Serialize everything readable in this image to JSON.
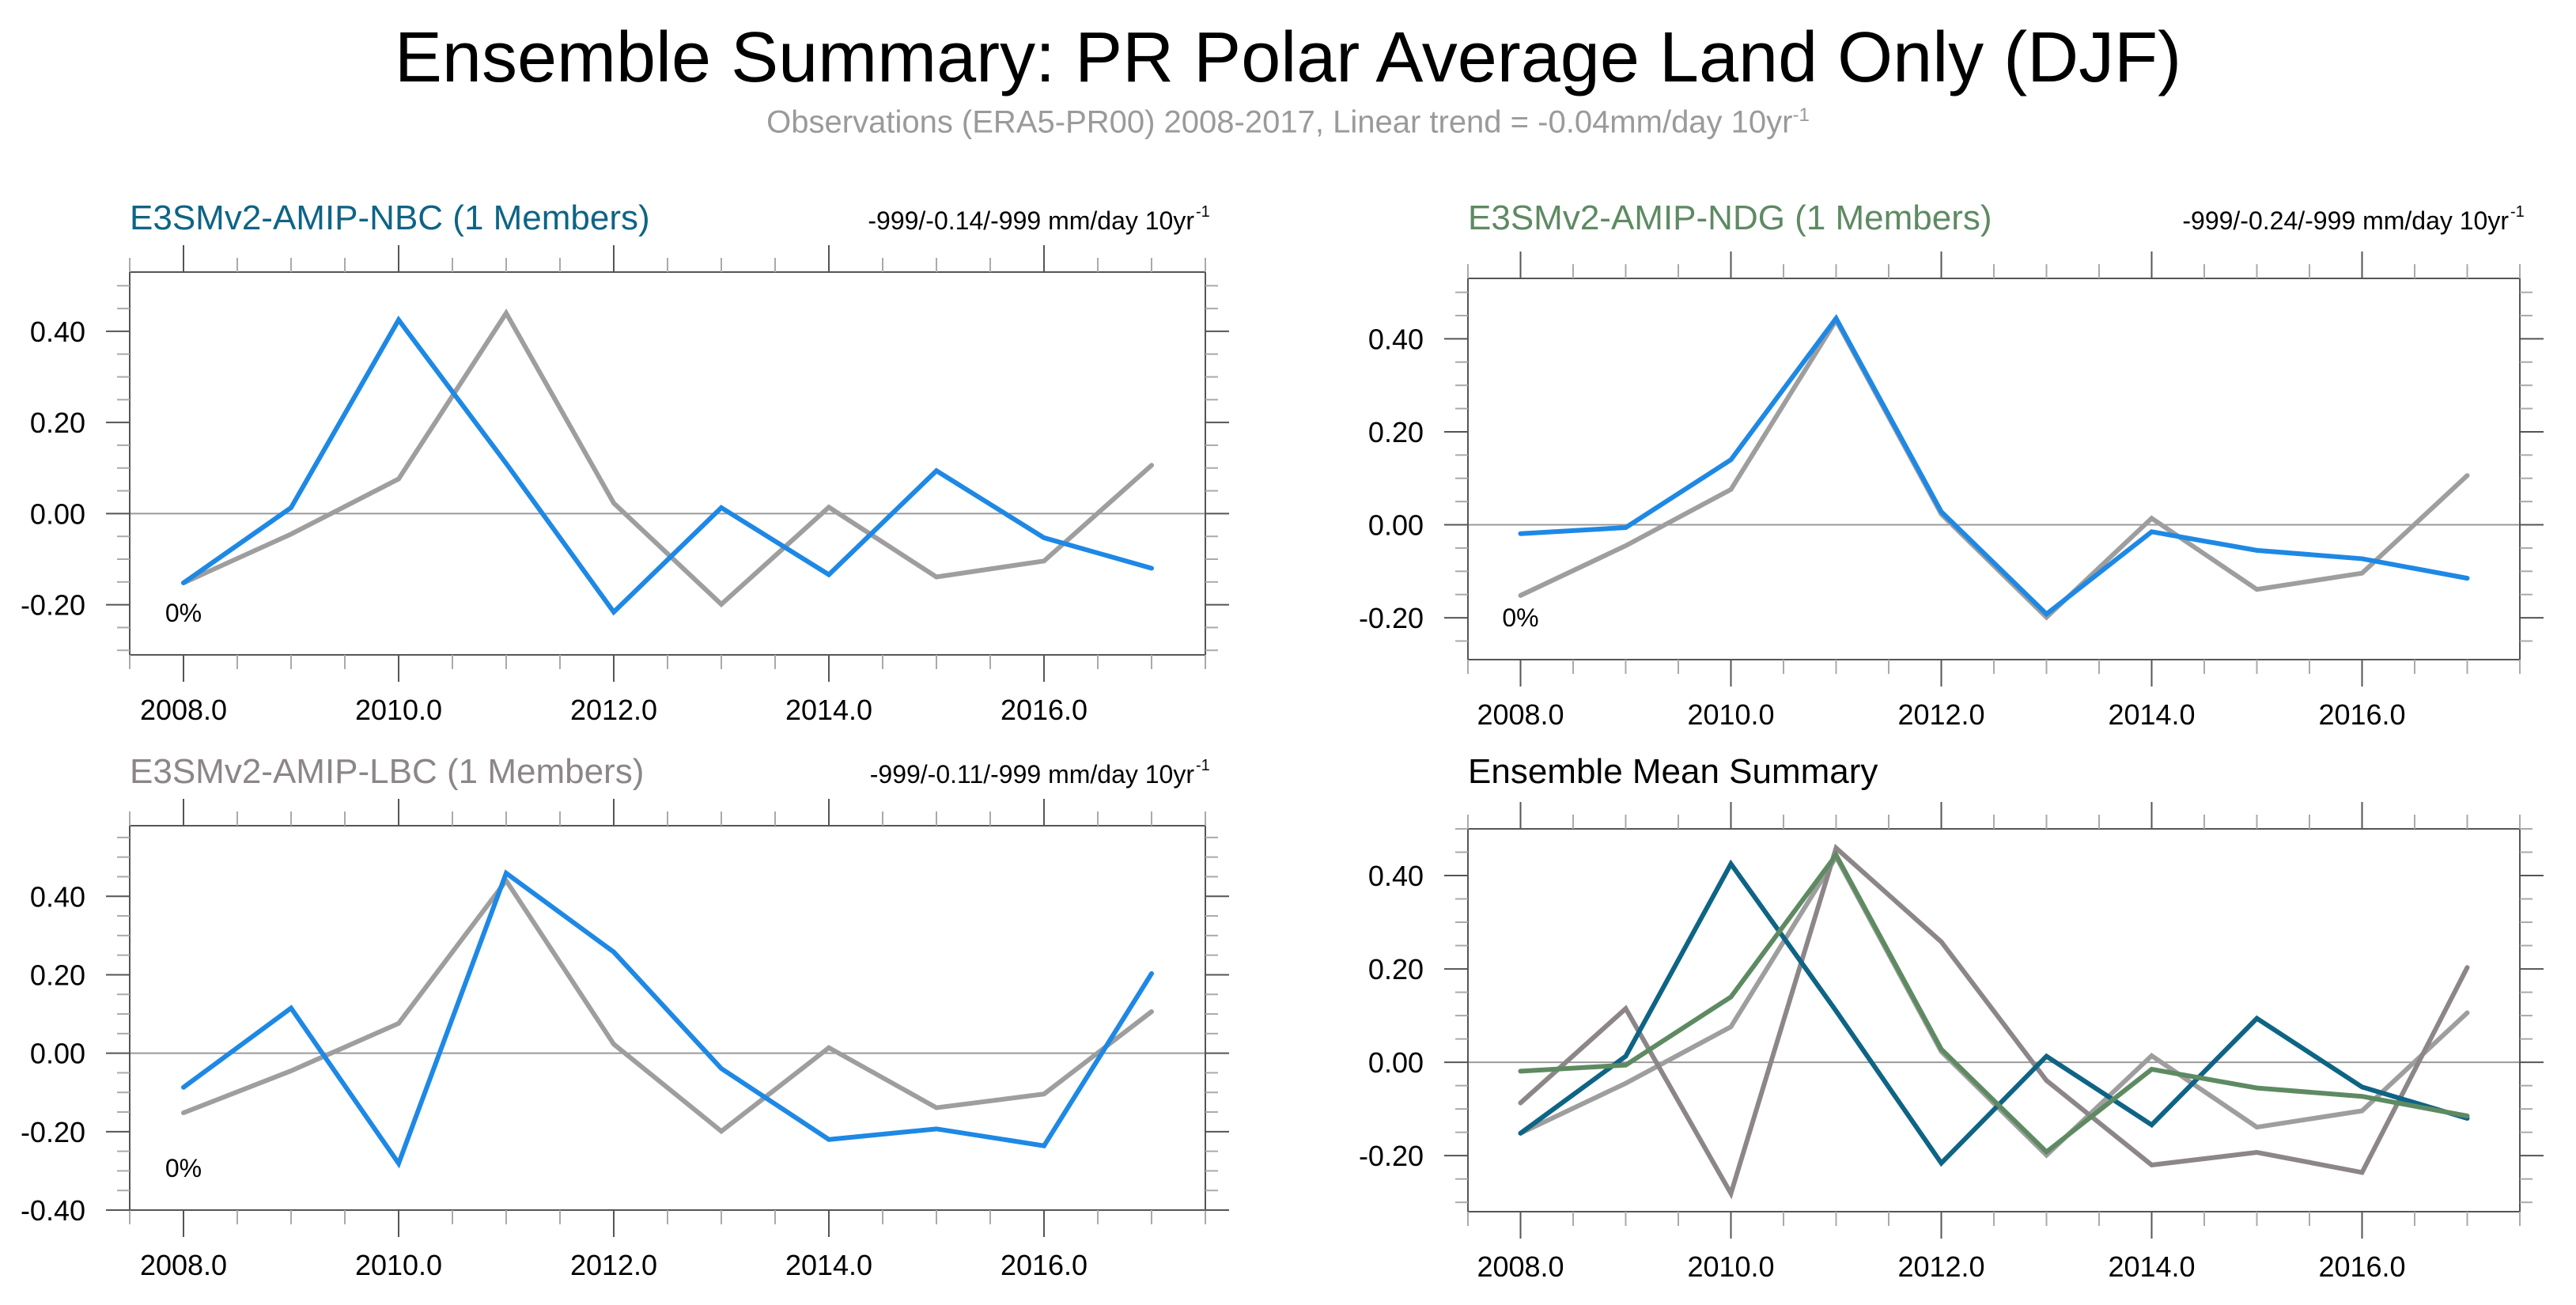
{
  "header": {
    "title": "Ensemble Summary: PR Polar Average Land Only (DJF)",
    "subtitle": "Observations (ERA5-PR00) 2008-2017, Linear trend = -0.04mm/day 10yr",
    "subtitle_sup": "-1"
  },
  "colors": {
    "nbc": "#0e6485",
    "ndg": "#5e8a62",
    "lbc": "#8c8688",
    "model_single": "#1e88e5",
    "obs": "#9e9e9e"
  },
  "chart_data": [
    {
      "type": "line",
      "panel": "top-left",
      "title": "E3SMv2-AMIP-NBC (1 Members)",
      "title_color": "#0e6485",
      "trend_label": "-999/-0.14/-999 mm/day 10yr",
      "trend_sup": "-1",
      "percent_label": "0%",
      "xlim": [
        2007.5,
        2017.5
      ],
      "ylim": [
        -0.31,
        0.53
      ],
      "x": [
        2008,
        2009,
        2010,
        2011,
        2012,
        2013,
        2014,
        2015,
        2016,
        2017
      ],
      "xticks": [
        2008,
        2010,
        2012,
        2014,
        2016
      ],
      "xtick_labels": [
        "2008.0",
        "2010.0",
        "2012.0",
        "2014.0",
        "2016.0"
      ],
      "yticks": [
        -0.2,
        0.0,
        0.2,
        0.4
      ],
      "ytick_labels": [
        "-0.20",
        "0.00",
        "0.20",
        "0.40"
      ],
      "series": [
        {
          "name": "Observations (ERA5-PR00)",
          "color": "#9e9e9e",
          "values": [
            -0.152,
            -0.045,
            0.076,
            0.44,
            0.023,
            -0.199,
            0.014,
            -0.139,
            -0.104,
            0.106
          ]
        },
        {
          "name": "E3SMv2-AMIP-NBC",
          "color": "#1e88e5",
          "values": [
            -0.152,
            0.013,
            0.425,
            0.11,
            -0.216,
            0.013,
            -0.134,
            0.094,
            -0.053,
            -0.12
          ]
        }
      ]
    },
    {
      "type": "line",
      "panel": "top-right",
      "title": "E3SMv2-AMIP-NDG (1 Members)",
      "title_color": "#5e8a62",
      "trend_label": "-999/-0.24/-999 mm/day 10yr",
      "trend_sup": "-1",
      "percent_label": "0%",
      "xlim": [
        2007.5,
        2017.5
      ],
      "ylim": [
        -0.29,
        0.53
      ],
      "x": [
        2008,
        2009,
        2010,
        2011,
        2012,
        2013,
        2014,
        2015,
        2016,
        2017
      ],
      "xticks": [
        2008,
        2010,
        2012,
        2014,
        2016
      ],
      "xtick_labels": [
        "2008.0",
        "2010.0",
        "2012.0",
        "2014.0",
        "2016.0"
      ],
      "yticks": [
        -0.2,
        0.0,
        0.2,
        0.4
      ],
      "ytick_labels": [
        "-0.20",
        "0.00",
        "0.20",
        "0.40"
      ],
      "series": [
        {
          "name": "Observations (ERA5-PR00)",
          "color": "#9e9e9e",
          "values": [
            -0.152,
            -0.045,
            0.076,
            0.44,
            0.023,
            -0.199,
            0.014,
            -0.139,
            -0.104,
            0.106
          ]
        },
        {
          "name": "E3SMv2-AMIP-NDG",
          "color": "#1e88e5",
          "values": [
            -0.019,
            -0.006,
            0.14,
            0.444,
            0.028,
            -0.192,
            -0.015,
            -0.055,
            -0.073,
            -0.115
          ]
        }
      ]
    },
    {
      "type": "line",
      "panel": "bottom-left",
      "title": "E3SMv2-AMIP-LBC (1 Members)",
      "title_color": "#8c8688",
      "trend_label": "-999/-0.11/-999 mm/day 10yr",
      "trend_sup": "-1",
      "percent_label": "0%",
      "xlim": [
        2007.5,
        2017.5
      ],
      "ylim": [
        -0.4,
        0.58
      ],
      "x": [
        2008,
        2009,
        2010,
        2011,
        2012,
        2013,
        2014,
        2015,
        2016,
        2017
      ],
      "xticks": [
        2008,
        2010,
        2012,
        2014,
        2016
      ],
      "xtick_labels": [
        "2008.0",
        "2010.0",
        "2012.0",
        "2014.0",
        "2016.0"
      ],
      "yticks": [
        -0.4,
        -0.2,
        0.0,
        0.2,
        0.4
      ],
      "ytick_labels": [
        "-0.40",
        "-0.20",
        "0.00",
        "0.20",
        "0.40"
      ],
      "series": [
        {
          "name": "Observations (ERA5-PR00)",
          "color": "#9e9e9e",
          "values": [
            -0.152,
            -0.045,
            0.076,
            0.44,
            0.023,
            -0.199,
            0.014,
            -0.139,
            -0.104,
            0.106
          ]
        },
        {
          "name": "E3SMv2-AMIP-LBC",
          "color": "#1e88e5",
          "values": [
            -0.087,
            0.115,
            -0.281,
            0.459,
            0.258,
            -0.039,
            -0.22,
            -0.193,
            -0.236,
            0.203
          ]
        }
      ]
    },
    {
      "type": "line",
      "panel": "bottom-right",
      "title": "Ensemble Mean Summary",
      "title_color": "#000000",
      "trend_label": "",
      "trend_sup": "",
      "percent_label": "",
      "xlim": [
        2007.5,
        2017.5
      ],
      "ylim": [
        -0.32,
        0.5
      ],
      "x": [
        2008,
        2009,
        2010,
        2011,
        2012,
        2013,
        2014,
        2015,
        2016,
        2017
      ],
      "xticks": [
        2008,
        2010,
        2012,
        2014,
        2016
      ],
      "xtick_labels": [
        "2008.0",
        "2010.0",
        "2012.0",
        "2014.0",
        "2016.0"
      ],
      "yticks": [
        -0.2,
        0.0,
        0.2,
        0.4
      ],
      "ytick_labels": [
        "-0.20",
        "0.00",
        "0.20",
        "0.40"
      ],
      "series": [
        {
          "name": "Observations (ERA5-PR00)",
          "color": "#9e9e9e",
          "values": [
            -0.152,
            -0.045,
            0.076,
            0.44,
            0.023,
            -0.199,
            0.014,
            -0.139,
            -0.104,
            0.106
          ]
        },
        {
          "name": "E3SMv2-AMIP-LBC",
          "color": "#8c8688",
          "values": [
            -0.087,
            0.115,
            -0.281,
            0.459,
            0.258,
            -0.039,
            -0.22,
            -0.193,
            -0.236,
            0.203
          ]
        },
        {
          "name": "E3SMv2-AMIP-NBC",
          "color": "#0e6485",
          "values": [
            -0.152,
            0.013,
            0.425,
            0.11,
            -0.216,
            0.013,
            -0.134,
            0.094,
            -0.053,
            -0.12
          ]
        },
        {
          "name": "E3SMv2-AMIP-NDG",
          "color": "#5e8a62",
          "values": [
            -0.019,
            -0.006,
            0.14,
            0.444,
            0.028,
            -0.192,
            -0.015,
            -0.055,
            -0.073,
            -0.115
          ]
        }
      ]
    }
  ]
}
